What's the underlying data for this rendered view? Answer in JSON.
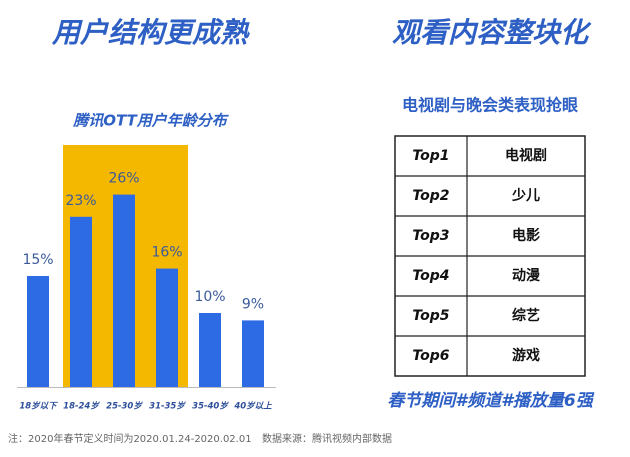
{
  "left_heading": "用户结构更成熟",
  "right_heading": "观看内容整块化",
  "chart_data": {
    "type": "bar",
    "title": "腾讯OTT用户年龄分布",
    "categories": [
      "18岁以下",
      "18-24岁",
      "25-30岁",
      "31-35岁",
      "35-40岁",
      "40岁以上"
    ],
    "values": [
      15,
      23,
      26,
      16,
      10,
      9
    ],
    "value_labels": [
      "15%",
      "23%",
      "26%",
      "16%",
      "10%",
      "9%"
    ],
    "color": "#2d6be4"
  },
  "table": {
    "title": "电视剧与晚会类表现抢眼",
    "rows": [
      [
        "Top1",
        "电视剧"
      ],
      [
        "Top2",
        "少儿"
      ],
      [
        "Top3",
        "电影"
      ],
      [
        "Top4",
        "动漫"
      ],
      [
        "Top5",
        "综艺"
      ],
      [
        "Top6",
        "游戏"
      ]
    ],
    "caption": "春节期间#频道#播放量6强"
  },
  "footnote": {
    "note": "注：2020年春节定义时间为2020.01.24-2020.02.01",
    "source": "数据来源：腾讯视频内部数据"
  }
}
